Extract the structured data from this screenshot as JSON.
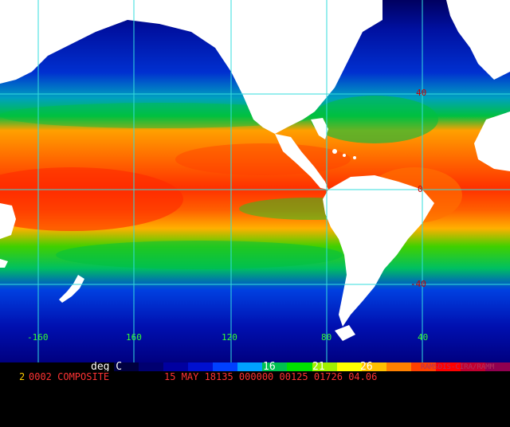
{
  "map": {
    "lat_labels": [
      {
        "value": "40",
        "row": "north"
      },
      {
        "value": "0",
        "row": "equator"
      },
      {
        "value": "-40",
        "row": "south"
      }
    ],
    "lon_labels": [
      "-160",
      "160",
      "120",
      "80",
      "40"
    ],
    "colors": {
      "land": "#ffffff",
      "graticule": "#33dddd",
      "ocean_warm": "#ff5500",
      "ocean_hot": "#ff2a00",
      "ocean_mid": "#00c040",
      "ocean_cool": "#0030d0",
      "ocean_cold": "#000080"
    }
  },
  "colorbar": {
    "unit_label": "deg C",
    "ticks": [
      "16",
      "21",
      "26"
    ],
    "colors": [
      "#000000",
      "#000040",
      "#000070",
      "#0000a0",
      "#0010d0",
      "#0040ff",
      "#00a0ff",
      "#00c050",
      "#00e000",
      "#a0f000",
      "#ffff00",
      "#ffc000",
      "#ff8000",
      "#ff4000",
      "#ff0000",
      "#c00030",
      "#900050"
    ]
  },
  "footer": {
    "number": "2",
    "title": "0002 COMPOSITE",
    "stamp": "15 MAY 18135 000000 00125 01726 04.06",
    "credit": "RAMSDIS-CIRA/RAMM"
  }
}
